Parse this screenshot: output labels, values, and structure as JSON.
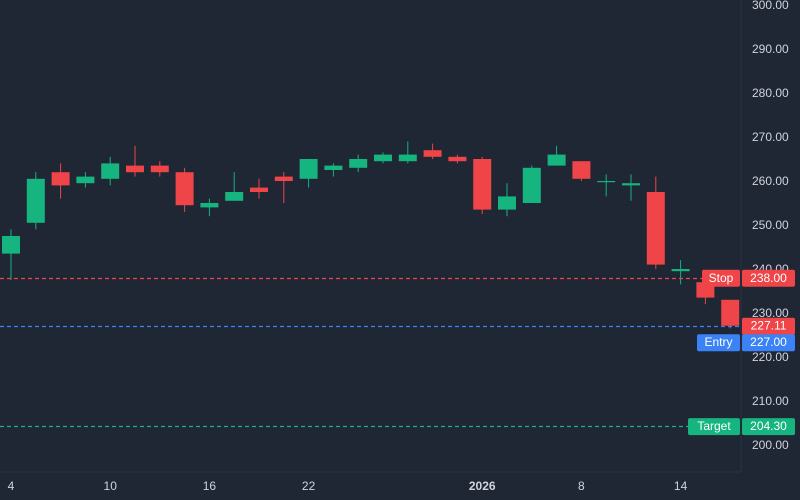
{
  "chart_data": {
    "type": "candlestick",
    "colors": {
      "background": "#1f2634",
      "up": "#16b47e",
      "down": "#ef4548",
      "stop": "#ef4548",
      "entry": "#3b82f6",
      "target": "#16b47e",
      "text": "#d1d4dc",
      "grid_divider": "#2b3344"
    },
    "y_axis": {
      "side": "right",
      "range": [
        195,
        301
      ],
      "ticks": [
        "200.00",
        "210.00",
        "220.00",
        "230.00",
        "240.00",
        "250.00",
        "260.00",
        "270.00",
        "280.00",
        "290.00",
        "300.00"
      ],
      "tick_values": [
        200,
        210,
        220,
        230,
        240,
        250,
        260,
        270,
        280,
        290,
        300
      ]
    },
    "x_axis": {
      "ticks": [
        {
          "label": "4",
          "index": 0,
          "bold": false
        },
        {
          "label": "10",
          "index": 4,
          "bold": false
        },
        {
          "label": "16",
          "index": 8,
          "bold": false
        },
        {
          "label": "22",
          "index": 12,
          "bold": false
        },
        {
          "label": "2026",
          "index": 19,
          "bold": true
        },
        {
          "label": "8",
          "index": 23,
          "bold": false
        },
        {
          "label": "14",
          "index": 27,
          "bold": false
        }
      ]
    },
    "candles": [
      {
        "o": 243.5,
        "h": 249.0,
        "l": 237.5,
        "c": 247.5
      },
      {
        "o": 250.5,
        "h": 262.0,
        "l": 249.0,
        "c": 260.5
      },
      {
        "o": 262.0,
        "h": 264.0,
        "l": 256.0,
        "c": 259.0
      },
      {
        "o": 259.5,
        "h": 262.0,
        "l": 258.5,
        "c": 261.0
      },
      {
        "o": 260.5,
        "h": 265.5,
        "l": 259.0,
        "c": 264.0
      },
      {
        "o": 263.5,
        "h": 268.0,
        "l": 261.0,
        "c": 262.0
      },
      {
        "o": 263.5,
        "h": 264.5,
        "l": 261.0,
        "c": 262.0
      },
      {
        "o": 262.0,
        "h": 263.0,
        "l": 253.0,
        "c": 254.5
      },
      {
        "o": 254.0,
        "h": 256.0,
        "l": 252.0,
        "c": 255.0
      },
      {
        "o": 255.5,
        "h": 262.0,
        "l": 255.5,
        "c": 257.5
      },
      {
        "o": 258.5,
        "h": 260.5,
        "l": 256.0,
        "c": 257.5
      },
      {
        "o": 261.0,
        "h": 262.0,
        "l": 255.0,
        "c": 260.0
      },
      {
        "o": 260.5,
        "h": 265.0,
        "l": 258.5,
        "c": 265.0
      },
      {
        "o": 262.5,
        "h": 264.0,
        "l": 261.0,
        "c": 263.5
      },
      {
        "o": 263.0,
        "h": 266.0,
        "l": 262.0,
        "c": 265.0
      },
      {
        "o": 264.5,
        "h": 266.5,
        "l": 264.0,
        "c": 266.0
      },
      {
        "o": 264.5,
        "h": 269.0,
        "l": 264.0,
        "c": 266.0
      },
      {
        "o": 267.0,
        "h": 268.5,
        "l": 265.0,
        "c": 265.5
      },
      {
        "o": 265.5,
        "h": 266.0,
        "l": 264.0,
        "c": 264.5
      },
      {
        "o": 265.0,
        "h": 265.5,
        "l": 252.5,
        "c": 253.5
      },
      {
        "o": 253.5,
        "h": 259.5,
        "l": 252.0,
        "c": 256.5
      },
      {
        "o": 255.0,
        "h": 263.5,
        "l": 255.0,
        "c": 263.0
      },
      {
        "o": 263.5,
        "h": 268.0,
        "l": 263.5,
        "c": 266.0
      },
      {
        "o": 264.5,
        "h": 264.5,
        "l": 260.0,
        "c": 260.5
      },
      {
        "o": 260.0,
        "h": 261.5,
        "l": 256.5,
        "c": 260.0
      },
      {
        "o": 259.0,
        "h": 261.5,
        "l": 255.5,
        "c": 259.5
      },
      {
        "o": 257.5,
        "h": 261.0,
        "l": 240.0,
        "c": 241.0
      },
      {
        "o": 239.5,
        "h": 242.0,
        "l": 236.5,
        "c": 240.0
      },
      {
        "o": 237.0,
        "h": 237.0,
        "l": 232.0,
        "c": 233.5
      },
      {
        "o": 233.0,
        "h": 233.0,
        "l": 226.5,
        "c": 227.11
      }
    ],
    "current_price": {
      "value": 227.11,
      "label": "227.11"
    },
    "levels": [
      {
        "name": "Stop",
        "value": 238.0,
        "value_label": "238.00",
        "color": "#ef4548"
      },
      {
        "name": "Entry",
        "value": 227.0,
        "value_label": "227.00",
        "color": "#3b82f6"
      },
      {
        "name": "Target",
        "value": 204.3,
        "value_label": "204.30",
        "color": "#16b47e"
      }
    ]
  }
}
